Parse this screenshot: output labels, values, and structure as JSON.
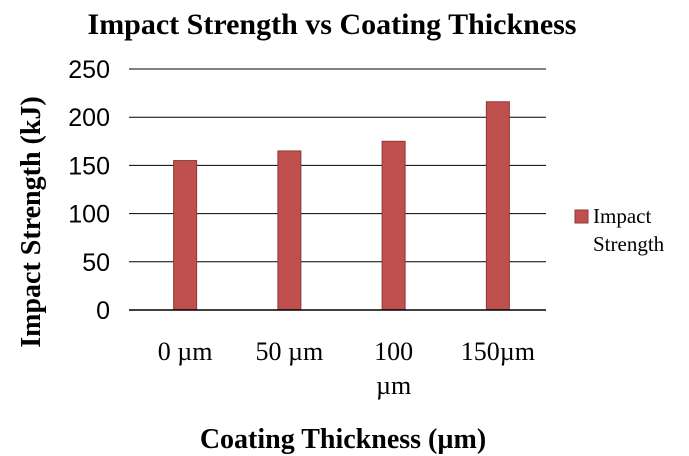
{
  "chart_data": {
    "type": "bar",
    "title": "Impact Strength vs Coating Thickness",
    "xlabel": "Coating Thickness (µm)",
    "ylabel": "Impact Strength (kJ)",
    "categories": [
      "0 µm",
      "50 µm",
      "100 µm",
      "150µm"
    ],
    "series": [
      {
        "name": "Impact Strength",
        "values": [
          155,
          165,
          175,
          216
        ],
        "color": "#c0504d"
      }
    ],
    "ylim": [
      0,
      250
    ],
    "yticks": [
      0,
      50,
      100,
      150,
      200,
      250
    ],
    "grid": true,
    "legend": "right"
  }
}
